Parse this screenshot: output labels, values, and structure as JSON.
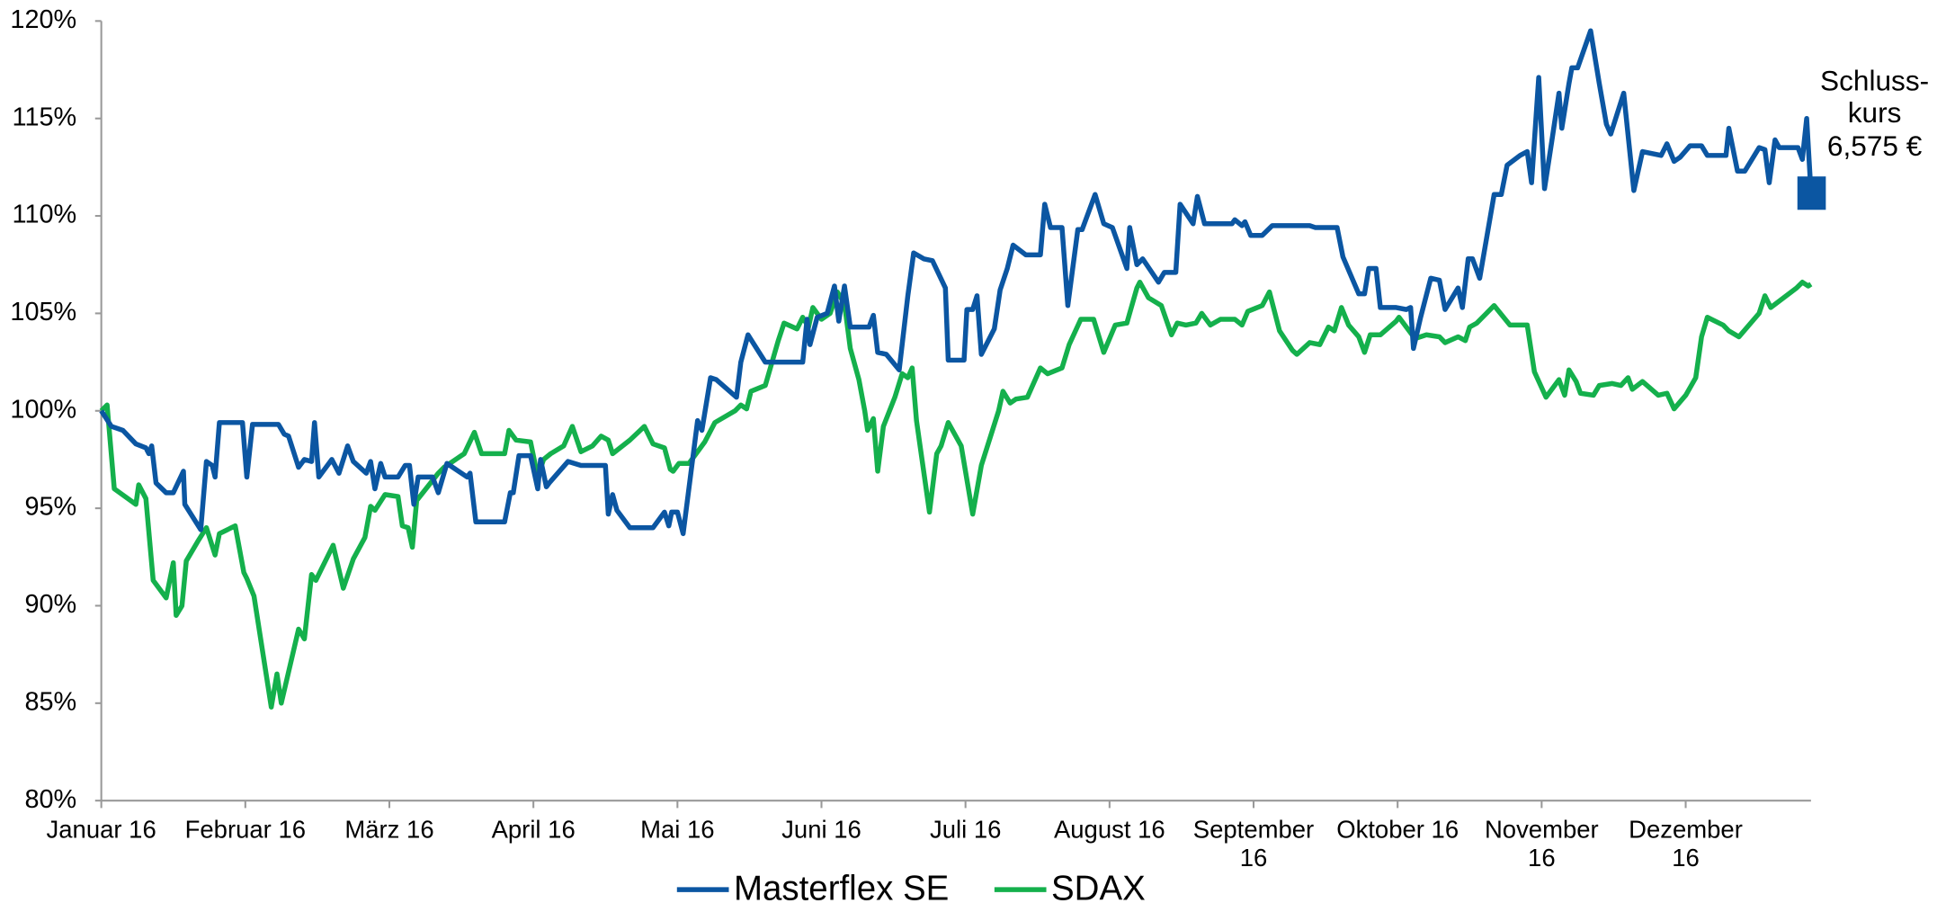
{
  "chart_data": {
    "type": "line",
    "xlim": [
      0,
      11.87
    ],
    "xticks": [
      {
        "value": 0,
        "label": "Januar 16"
      },
      {
        "value": 1,
        "label": "Februar 16"
      },
      {
        "value": 2,
        "label": "März 16"
      },
      {
        "value": 3,
        "label": "April 16"
      },
      {
        "value": 4,
        "label": "Mai 16"
      },
      {
        "value": 5,
        "label": "Juni 16"
      },
      {
        "value": 6,
        "label": "Juli 16"
      },
      {
        "value": 7,
        "label": "August 16"
      },
      {
        "value": 8,
        "label": "September\n16"
      },
      {
        "value": 9,
        "label": "Oktober 16"
      },
      {
        "value": 10,
        "label": "November\n16"
      },
      {
        "value": 11,
        "label": "Dezember\n16"
      }
    ],
    "ylim": [
      80,
      120
    ],
    "yticks": [
      {
        "value": 80,
        "label": "80%"
      },
      {
        "value": 85,
        "label": "85%"
      },
      {
        "value": 90,
        "label": "90%"
      },
      {
        "value": 95,
        "label": "95%"
      },
      {
        "value": 100,
        "label": "100%"
      },
      {
        "value": 105,
        "label": "105%"
      },
      {
        "value": 110,
        "label": "110%"
      },
      {
        "value": 115,
        "label": "115%"
      },
      {
        "value": 120,
        "label": "120%"
      }
    ],
    "grid": false,
    "legend": "bottom",
    "annotation": "Schluss-\nkurs\n6,575 €",
    "series": [
      {
        "name": "Masterflex SE",
        "color": "#0b56a2",
        "x": [
          0,
          0.07,
          0.15,
          0.24,
          0.31,
          0.33,
          0.35,
          0.38,
          0.45,
          0.5,
          0.57,
          0.58,
          0.69,
          0.73,
          0.77,
          0.79,
          0.82,
          0.98,
          1.01,
          1.05,
          1.23,
          1.27,
          1.3,
          1.37,
          1.41,
          1.46,
          1.48,
          1.51,
          1.6,
          1.65,
          1.71,
          1.75,
          1.84,
          1.87,
          1.9,
          1.94,
          1.97,
          2.06,
          2.11,
          2.14,
          2.17,
          2.2,
          2.3,
          2.34,
          2.4,
          2.54,
          2.56,
          2.6,
          2.8,
          2.84,
          2.86,
          2.9,
          2.98,
          3.03,
          3.05,
          3.09,
          3.11,
          3.24,
          3.33,
          3.5,
          3.52,
          3.55,
          3.58,
          3.67,
          3.83,
          3.91,
          3.94,
          3.96,
          4.0,
          4.04,
          4.14,
          4.17,
          4.23,
          4.27,
          4.41,
          4.44,
          4.49,
          4.61,
          4.87,
          4.9,
          4.92,
          4.97,
          5.04,
          5.09,
          5.12,
          5.16,
          5.2,
          5.33,
          5.36,
          5.39,
          5.45,
          5.54,
          5.6,
          5.64,
          5.71,
          5.77,
          5.86,
          5.88,
          5.99,
          6.01,
          6.05,
          6.08,
          6.11,
          6.2,
          6.24,
          6.29,
          6.33,
          6.42,
          6.52,
          6.55,
          6.59,
          6.67,
          6.71,
          6.78,
          6.81,
          6.9,
          6.96,
          7.02,
          7.12,
          7.14,
          7.19,
          7.23,
          7.34,
          7.38,
          7.46,
          7.49,
          7.58,
          7.61,
          7.66,
          7.85,
          7.87,
          7.92,
          7.94,
          7.98,
          8.06,
          8.13,
          8.39,
          8.43,
          8.58,
          8.62,
          8.73,
          8.77,
          8.8,
          8.85,
          8.88,
          8.99,
          9.06,
          9.09,
          9.11,
          9.16,
          9.23,
          9.29,
          9.33,
          9.42,
          9.45,
          9.49,
          9.52,
          9.57,
          9.67,
          9.72,
          9.76,
          9.85,
          9.9,
          9.93,
          9.98,
          10.02,
          10.07,
          10.12,
          10.14,
          10.19,
          10.21,
          10.25,
          10.34,
          10.4,
          10.45,
          10.48,
          10.57,
          10.64,
          10.7,
          10.83,
          10.87,
          10.92,
          10.96,
          11.03,
          11.11,
          11.15,
          11.28,
          11.3,
          11.36,
          11.41,
          11.51,
          11.55,
          11.58,
          11.62,
          11.65,
          11.78,
          11.81,
          11.84,
          11.87
        ],
        "values": [
          100,
          99.2,
          99.0,
          98.3,
          98.1,
          97.8,
          98.2,
          96.3,
          95.8,
          95.8,
          96.9,
          95.2,
          93.9,
          97.4,
          97.2,
          96.6,
          99.4,
          99.4,
          96.6,
          99.3,
          99.3,
          98.8,
          98.7,
          97.1,
          97.5,
          97.4,
          99.4,
          96.6,
          97.5,
          96.8,
          98.2,
          97.4,
          96.8,
          97.4,
          96.0,
          97.3,
          96.6,
          96.6,
          97.2,
          97.2,
          95.2,
          96.6,
          96.6,
          95.8,
          97.3,
          96.6,
          96.8,
          94.3,
          94.3,
          95.8,
          95.8,
          97.7,
          97.7,
          96.0,
          97.5,
          96.1,
          96.3,
          97.4,
          97.2,
          97.2,
          94.7,
          95.7,
          94.9,
          94.0,
          94.0,
          94.8,
          94.1,
          94.8,
          94.8,
          93.7,
          99.5,
          99.0,
          101.7,
          101.6,
          100.7,
          102.5,
          103.9,
          102.5,
          102.5,
          104.7,
          103.4,
          104.8,
          105.0,
          106.4,
          104.6,
          106.4,
          104.3,
          104.3,
          104.9,
          103.0,
          102.9,
          102.1,
          105.9,
          108.1,
          107.8,
          107.7,
          106.3,
          102.6,
          102.6,
          105.2,
          105.2,
          105.9,
          102.9,
          104.2,
          106.2,
          107.3,
          108.5,
          108.0,
          108.0,
          110.6,
          109.4,
          109.4,
          105.4,
          109.3,
          109.3,
          111.1,
          109.6,
          109.4,
          107.3,
          109.4,
          107.5,
          107.8,
          106.6,
          107.1,
          107.1,
          110.6,
          109.6,
          111.0,
          109.6,
          109.6,
          109.8,
          109.5,
          109.7,
          109.0,
          109.0,
          109.5,
          109.5,
          109.4,
          109.4,
          107.9,
          106.0,
          106.0,
          107.3,
          107.3,
          105.3,
          105.3,
          105.2,
          105.3,
          103.2,
          104.8,
          106.8,
          106.7,
          105.2,
          106.3,
          105.3,
          107.8,
          107.8,
          106.8,
          111.1,
          111.1,
          112.6,
          113.1,
          113.3,
          111.7,
          117.1,
          111.4,
          113.8,
          116.3,
          114.5,
          116.8,
          117.6,
          117.6,
          119.5,
          116.8,
          114.7,
          114.2,
          116.3,
          111.3,
          113.3,
          113.1,
          113.7,
          112.8,
          113.0,
          113.6,
          113.6,
          113.1,
          113.1,
          114.5,
          112.3,
          112.3,
          113.5,
          113.4,
          111.7,
          113.9,
          113.5,
          113.5,
          112.9,
          115.0,
          111.2
        ]
      },
      {
        "name": "SDAX",
        "color": "#14b04c",
        "x": [
          0,
          0.04,
          0.09,
          0.24,
          0.26,
          0.31,
          0.36,
          0.45,
          0.5,
          0.52,
          0.56,
          0.59,
          0.67,
          0.73,
          0.79,
          0.82,
          0.93,
          0.99,
          1.01,
          1.06,
          1.18,
          1.22,
          1.25,
          1.37,
          1.41,
          1.46,
          1.49,
          1.61,
          1.68,
          1.75,
          1.83,
          1.87,
          1.9,
          1.97,
          2.06,
          2.09,
          2.13,
          2.16,
          2.19,
          2.34,
          2.38,
          2.52,
          2.59,
          2.64,
          2.8,
          2.83,
          2.88,
          2.98,
          3.03,
          3.07,
          3.12,
          3.21,
          3.27,
          3.33,
          3.41,
          3.47,
          3.52,
          3.55,
          3.67,
          3.77,
          3.83,
          3.91,
          3.95,
          3.97,
          4.01,
          4.08,
          4.14,
          4.19,
          4.26,
          4.4,
          4.44,
          4.48,
          4.51,
          4.61,
          4.7,
          4.74,
          4.83,
          4.87,
          4.91,
          4.94,
          5.0,
          5.06,
          5.11,
          5.16,
          5.2,
          5.26,
          5.3,
          5.32,
          5.36,
          5.39,
          5.43,
          5.51,
          5.56,
          5.6,
          5.63,
          5.66,
          5.75,
          5.8,
          5.83,
          5.88,
          5.97,
          6.05,
          6.11,
          6.23,
          6.26,
          6.31,
          6.35,
          6.43,
          6.52,
          6.57,
          6.67,
          6.72,
          6.8,
          6.89,
          6.96,
          7.04,
          7.12,
          7.19,
          7.21,
          7.27,
          7.36,
          7.43,
          7.47,
          7.53,
          7.6,
          7.64,
          7.7,
          7.77,
          7.87,
          7.92,
          7.96,
          8.06,
          8.11,
          8.18,
          8.27,
          8.3,
          8.39,
          8.46,
          8.52,
          8.56,
          8.61,
          8.66,
          8.73,
          8.77,
          8.81,
          8.88,
          8.99,
          9.01,
          9.12,
          9.2,
          9.29,
          9.33,
          9.42,
          9.47,
          9.5,
          9.55,
          9.67,
          9.78,
          9.9,
          9.95,
          10.03,
          10.12,
          10.16,
          10.19,
          10.24,
          10.27,
          10.36,
          10.4,
          10.49,
          10.55,
          10.6,
          10.63,
          10.7,
          10.81,
          10.87,
          10.92,
          11.0,
          11.07,
          11.11,
          11.15,
          11.26,
          11.3,
          11.37,
          11.51,
          11.55,
          11.59,
          11.77,
          11.81,
          11.85,
          11.87
        ],
        "values": [
          100,
          100.3,
          96.0,
          95.2,
          96.2,
          95.5,
          91.3,
          90.4,
          92.2,
          89.5,
          90.0,
          92.3,
          93.3,
          94.0,
          92.6,
          93.7,
          94.1,
          91.7,
          91.4,
          90.5,
          84.8,
          86.5,
          85.0,
          88.8,
          88.3,
          91.6,
          91.3,
          93.1,
          90.9,
          92.4,
          93.5,
          95.1,
          94.9,
          95.7,
          95.6,
          94.1,
          94.0,
          93.0,
          95.4,
          96.8,
          97.1,
          97.8,
          98.9,
          97.8,
          97.8,
          99.0,
          98.5,
          98.4,
          96.6,
          97.5,
          97.8,
          98.2,
          99.2,
          97.9,
          98.2,
          98.7,
          98.5,
          97.8,
          98.5,
          99.2,
          98.3,
          98.1,
          97.0,
          96.9,
          97.3,
          97.3,
          97.9,
          98.4,
          99.4,
          100.0,
          100.3,
          100.1,
          101.0,
          101.3,
          103.6,
          104.5,
          104.2,
          104.8,
          104.3,
          105.3,
          104.7,
          105.0,
          106.1,
          105.5,
          103.2,
          101.6,
          100.0,
          99.0,
          99.6,
          96.9,
          99.2,
          100.7,
          101.9,
          101.7,
          102.2,
          99.5,
          94.8,
          97.8,
          98.2,
          99.4,
          98.2,
          94.7,
          97.2,
          100.0,
          101.0,
          100.4,
          100.6,
          100.7,
          102.2,
          101.9,
          102.2,
          103.4,
          104.7,
          104.7,
          103.0,
          104.4,
          104.5,
          106.3,
          106.6,
          105.8,
          105.4,
          103.9,
          104.5,
          104.4,
          104.5,
          105.0,
          104.4,
          104.7,
          104.7,
          104.4,
          105.1,
          105.4,
          106.1,
          104.1,
          103.1,
          102.9,
          103.5,
          103.4,
          104.3,
          104.1,
          105.3,
          104.4,
          103.8,
          103.0,
          103.9,
          103.9,
          104.6,
          104.8,
          103.7,
          103.9,
          103.8,
          103.5,
          103.8,
          103.6,
          104.3,
          104.5,
          105.4,
          104.4,
          104.4,
          102.0,
          100.7,
          101.6,
          100.8,
          102.1,
          101.5,
          100.9,
          100.8,
          101.3,
          101.4,
          101.3,
          101.7,
          101.1,
          101.5,
          100.8,
          100.9,
          100.1,
          100.8,
          101.7,
          103.8,
          104.8,
          104.4,
          104.1,
          103.8,
          105.0,
          105.9,
          105.3,
          106.3,
          106.6,
          106.4,
          106.5
        ]
      }
    ]
  }
}
